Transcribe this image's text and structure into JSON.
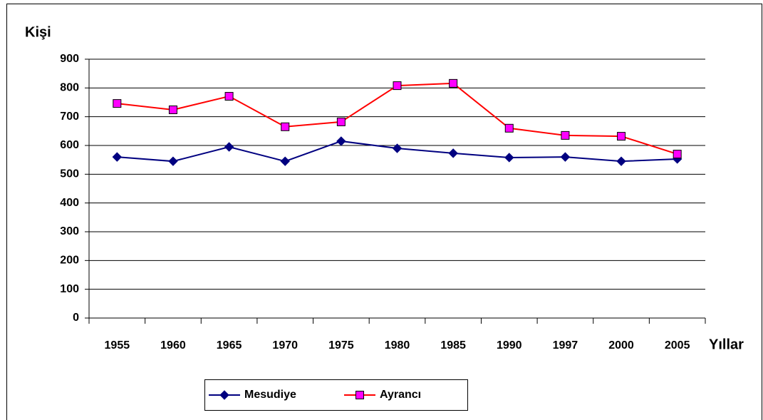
{
  "chart_data": {
    "type": "line",
    "y_label": "Kişi",
    "x_label": "Yıllar",
    "categories": [
      "1955",
      "1960",
      "1965",
      "1970",
      "1975",
      "1980",
      "1985",
      "1990",
      "1997",
      "2000",
      "2005"
    ],
    "series": [
      {
        "name": "Mesudiye",
        "color": "#000080",
        "marker": "diamond",
        "values": [
          560,
          545,
          595,
          545,
          615,
          590,
          573,
          558,
          560,
          545,
          553
        ]
      },
      {
        "name": "Ayrancı",
        "color": "#ff0000",
        "marker_color": "#ff00ff",
        "marker": "square",
        "values": [
          746,
          724,
          771,
          665,
          682,
          808,
          816,
          660,
          635,
          632,
          570
        ]
      }
    ],
    "ylim": [
      0,
      900
    ],
    "yticks": [
      0,
      100,
      200,
      300,
      400,
      500,
      600,
      700,
      800,
      900
    ],
    "grid": true,
    "legend": "bottom"
  }
}
